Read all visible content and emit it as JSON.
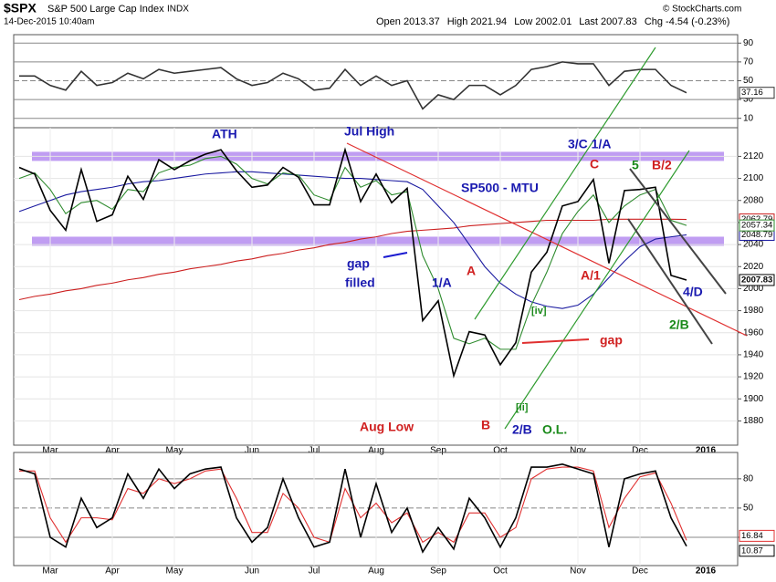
{
  "header": {
    "symbol": "$SPX",
    "name": "S&P 500 Large Cap Index",
    "exchange": "INDX",
    "datetime": "14-Dec-2015 10:40am",
    "quote": [
      "Open 2013.37",
      "High 2021.94",
      "Low 2002.01",
      "Last 2007.83",
      "Chg -4.54 (-0.23%)"
    ],
    "copyright": "© StockCharts.com"
  },
  "chart_data": [
    {
      "type": "line",
      "ylim": [
        0,
        99
      ],
      "yticks": [
        90,
        70,
        50,
        30,
        10
      ],
      "series": [
        {
          "color": "#333333",
          "values": [
            55,
            55,
            45,
            40,
            60,
            45,
            48,
            58,
            52,
            62,
            58,
            60,
            62,
            64,
            52,
            45,
            48,
            58,
            52,
            40,
            42,
            62,
            45,
            55,
            45,
            50,
            20,
            35,
            30,
            45,
            45,
            35,
            45,
            62,
            65,
            70,
            68,
            68,
            45,
            60,
            62,
            62,
            45,
            37.16
          ]
        }
      ]
    },
    {
      "type": "line",
      "ylim": [
        1858,
        2146
      ],
      "yticks": [
        1880,
        1900,
        1920,
        1940,
        1960,
        1980,
        2000,
        2020,
        2040,
        2060,
        2080,
        2100,
        2120
      ],
      "bands": [
        2120,
        2043
      ],
      "band_color": "#b58cf0",
      "categories": [
        null,
        null,
        "Mar",
        null,
        null,
        null,
        "Apr",
        null,
        null,
        null,
        "May",
        null,
        null,
        null,
        null,
        "Jun",
        null,
        null,
        null,
        "Jul",
        null,
        null,
        null,
        "Aug",
        null,
        null,
        null,
        "Sep",
        null,
        null,
        null,
        "Oct",
        null,
        null,
        null,
        null,
        "Nov",
        null,
        null,
        null,
        "Dec",
        null,
        null,
        null
      ],
      "x_end_label": "2016",
      "series": [
        {
          "color": "#000000",
          "values": [
            2110,
            2104,
            2071,
            2053,
            2108,
            2061,
            2067,
            2102,
            2081,
            2117,
            2108,
            2116,
            2122,
            2126,
            2107,
            2092,
            2094,
            2110,
            2101,
            2076,
            2076,
            2126,
            2079,
            2104,
            2078,
            2091,
            1971,
            1989,
            1921,
            1961,
            1958,
            1931,
            1951,
            2015,
            2033,
            2075,
            2079,
            2099,
            2023,
            2089,
            2090,
            2092,
            2012,
            2007.83
          ]
        },
        {
          "color": "#2e8b2e",
          "values": [
            2100,
            2105,
            2090,
            2068,
            2078,
            2080,
            2072,
            2090,
            2088,
            2105,
            2110,
            2112,
            2118,
            2120,
            2113,
            2100,
            2095,
            2105,
            2103,
            2085,
            2080,
            2110,
            2092,
            2098,
            2085,
            2088,
            2030,
            2000,
            1955,
            1950,
            1955,
            1945,
            1945,
            1985,
            2015,
            2050,
            2070,
            2085,
            2060,
            2075,
            2085,
            2090,
            2062,
            2057.34
          ]
        },
        {
          "color": "#1a1aa0",
          "values": [
            2070,
            2075,
            2080,
            2085,
            2088,
            2090,
            2092,
            2095,
            2097,
            2098,
            2100,
            2102,
            2104,
            2105,
            2106,
            2106,
            2105,
            2104,
            2103,
            2102,
            2101,
            2100,
            2100,
            2099,
            2098,
            2097,
            2090,
            2075,
            2060,
            2040,
            2020,
            2005,
            1995,
            1988,
            1984,
            1982,
            1985,
            1995,
            2010,
            2025,
            2038,
            2045,
            2047,
            2048.79
          ]
        },
        {
          "color": "#cc2020",
          "values": [
            1990,
            1993,
            1995,
            1998,
            2000,
            2003,
            2005,
            2008,
            2010,
            2013,
            2015,
            2018,
            2020,
            2022,
            2025,
            2027,
            2030,
            2032,
            2035,
            2037,
            2040,
            2042,
            2045,
            2047,
            2050,
            2052,
            2053,
            2054,
            2055,
            2057,
            2058,
            2059,
            2060,
            2061,
            2062,
            2062,
            2062,
            2062,
            2063,
            2063,
            2063,
            2063,
            2063,
            2062.79
          ]
        }
      ],
      "annotations": [
        "ATH",
        "Jul High",
        "3/C 1/A",
        "C",
        "5",
        "B/2",
        "SP500 - MTU",
        "gap",
        "filled",
        "1/A",
        "A",
        "[iv]",
        "gap",
        "A/1",
        "4/D",
        "2/B",
        "Aug Low",
        "B",
        "2/B",
        "O.L.",
        "[ii]"
      ]
    },
    {
      "type": "line",
      "ylim": [
        -9,
        107
      ],
      "yticks": [
        80,
        50,
        20
      ],
      "series": [
        {
          "color": "#000000",
          "values": [
            90,
            85,
            20,
            10,
            60,
            30,
            40,
            85,
            60,
            90,
            70,
            85,
            90,
            92,
            40,
            15,
            30,
            80,
            40,
            10,
            15,
            90,
            20,
            75,
            25,
            50,
            5,
            30,
            8,
            60,
            40,
            10,
            40,
            92,
            92,
            95,
            90,
            85,
            10,
            80,
            85,
            88,
            40,
            10.87
          ]
        },
        {
          "color": "#e03030",
          "values": [
            88,
            88,
            40,
            15,
            40,
            40,
            38,
            70,
            65,
            80,
            75,
            80,
            88,
            90,
            60,
            25,
            25,
            65,
            50,
            20,
            15,
            70,
            40,
            55,
            35,
            45,
            15,
            25,
            15,
            45,
            45,
            20,
            30,
            80,
            90,
            92,
            92,
            88,
            30,
            60,
            82,
            86,
            55,
            16.84
          ]
        }
      ]
    }
  ]
}
